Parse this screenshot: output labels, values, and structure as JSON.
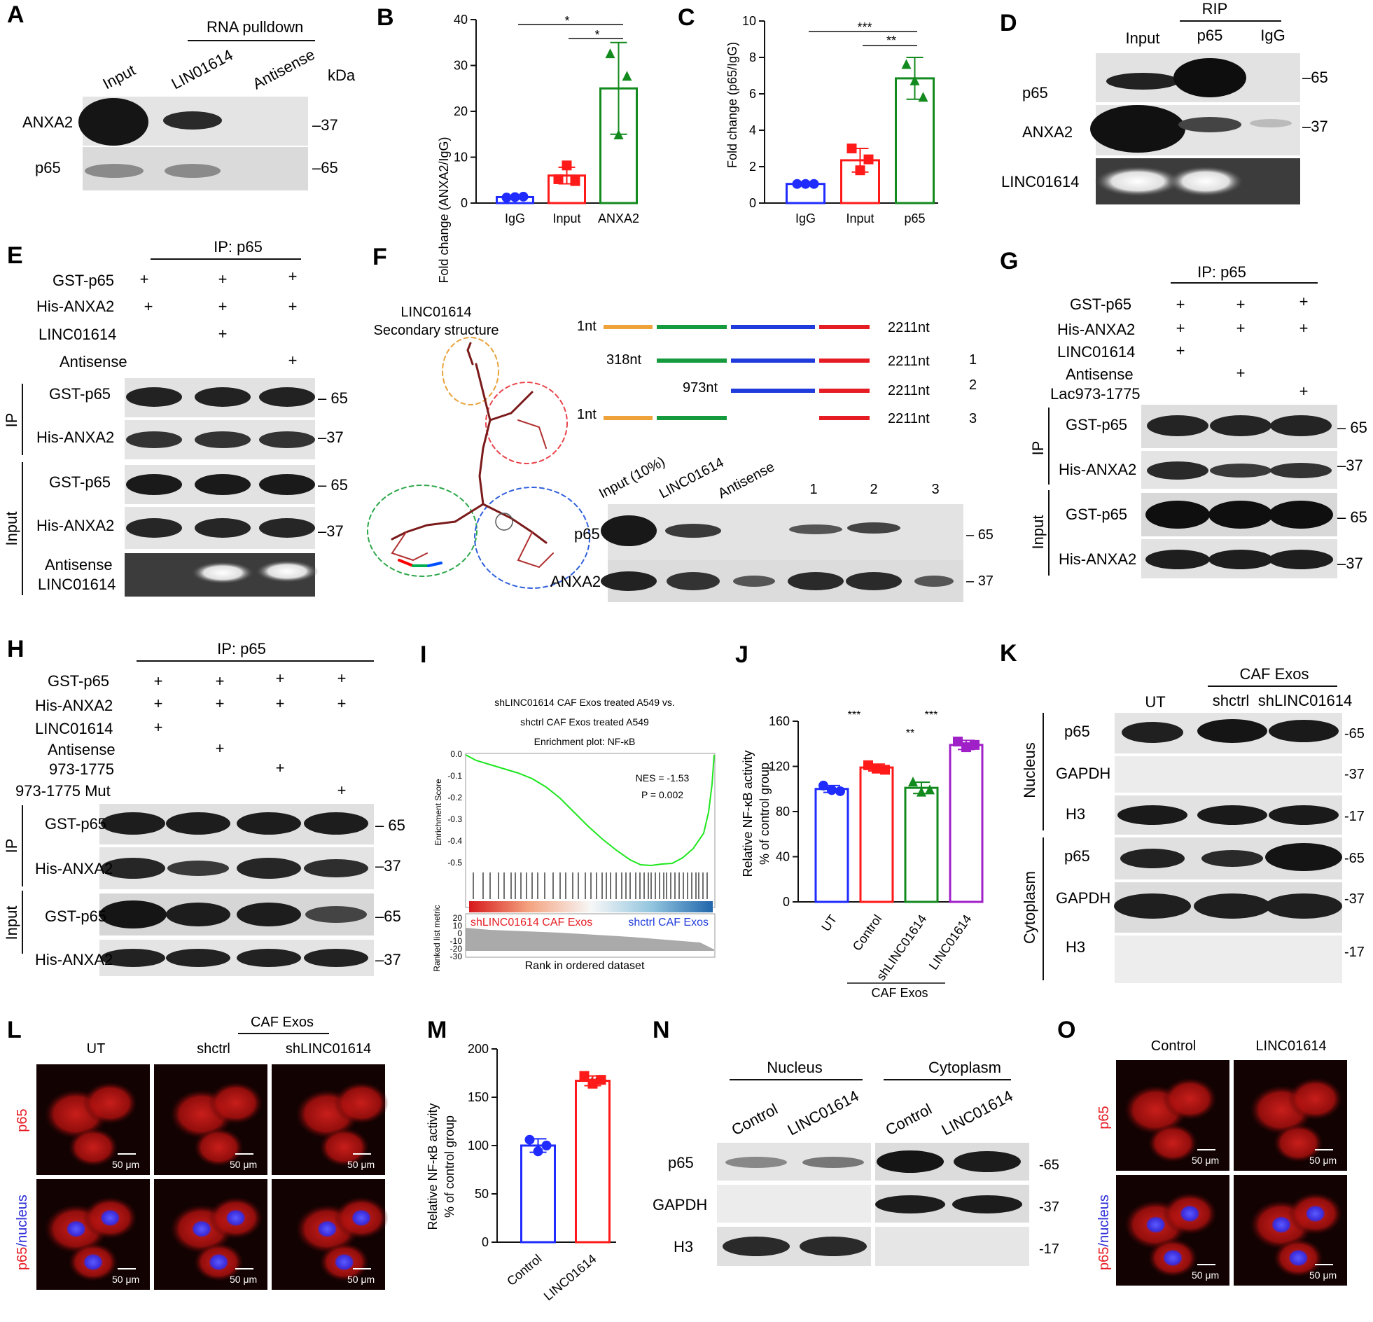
{
  "panels": {
    "A": {
      "letter": "A",
      "header": "RNA pulldown",
      "unit": "kDa",
      "lanes": [
        "Input",
        "LIN01614",
        "Antisense"
      ],
      "rows": [
        "ANXA2",
        "p65"
      ],
      "markers": [
        "37",
        "65"
      ]
    },
    "B": {
      "letter": "B",
      "ylabel": "Fold change (ANXA2/IgG)",
      "sig": [
        "*",
        "*"
      ]
    },
    "C": {
      "letter": "C",
      "ylabel": "Fold change (p65/IgG)",
      "sig": [
        "***",
        "**"
      ]
    },
    "D": {
      "letter": "D",
      "header": "RIP",
      "lanes": [
        "Input",
        "p65",
        "IgG"
      ],
      "rows": [
        "p65",
        "ANXA2",
        "LINC01614"
      ],
      "markers": [
        "65",
        "37"
      ]
    },
    "E": {
      "letter": "E",
      "header": "IP: p65",
      "conds": [
        "GST-p65",
        "His-ANXA2",
        "LINC01614",
        "Antisense"
      ],
      "plus": [
        "+",
        "+",
        "+",
        "+",
        "+",
        "+",
        "+",
        "+"
      ],
      "group_ip": "IP",
      "group_input": "Input",
      "rows": [
        "GST-p65",
        "His-ANXA2",
        "GST-p65",
        "His-ANXA2",
        "Antisense",
        "LINC01614"
      ],
      "markers": [
        "65",
        "37",
        "65",
        "37"
      ]
    },
    "F": {
      "letter": "F",
      "structure_title": "LINC01614",
      "structure_subtitle": "Secondary structure",
      "constructs": [
        {
          "start": "1nt",
          "end": "2211nt",
          "num": ""
        },
        {
          "start": "318nt",
          "end": "2211nt",
          "num": "1"
        },
        {
          "start": "973nt",
          "end": "2211nt",
          "num": "2"
        },
        {
          "start": "1nt",
          "end": "2211nt",
          "num": "3"
        }
      ],
      "lanes": [
        "Input (10%)",
        "LINC01614",
        "Antisense",
        "1",
        "2",
        "3"
      ],
      "rows": [
        "p65",
        "ANXA2"
      ],
      "markers": [
        "65",
        "37"
      ]
    },
    "G": {
      "letter": "G",
      "header": "IP: p65",
      "conds": [
        "GST-p65",
        "His-ANXA2",
        "LINC01614",
        "Antisense",
        "Lac973-1775"
      ],
      "plus": "+",
      "group_ip": "IP",
      "group_input": "Input",
      "rows": [
        "GST-p65",
        "His-ANXA2",
        "GST-p65",
        "His-ANXA2"
      ],
      "markers": [
        "65",
        "37",
        "65",
        "37"
      ]
    },
    "H": {
      "letter": "H",
      "header": "IP: p65",
      "conds": [
        "GST-p65",
        "His-ANXA2",
        "LINC01614",
        "Antisense",
        "973-1775",
        "973-1775 Mut"
      ],
      "plus": "+",
      "group_ip": "IP",
      "group_input": "Input",
      "rows": [
        "GST-p65",
        "His-ANXA2",
        "GST-p65",
        "His-ANXA2"
      ],
      "markers": [
        "65",
        "37",
        "65",
        "37"
      ]
    },
    "I": {
      "letter": "I",
      "title1": "shLINC01614 CAF Exos treated A549 vs.",
      "title2": "shctrl CAF Exos treated A549",
      "title3": "Enrichment plot: NF-κB",
      "nes": "NES = -1.53",
      "p": "P = 0.002",
      "ylabel": "Enrichment Score",
      "ylabel2": "Ranked list metric",
      "xlabel": "Rank in ordered dataset",
      "left_group": "shLINC01614 CAF Exos",
      "right_group": "shctrl CAF Exos",
      "es_ticks": [
        "0.0",
        "-0.1",
        "-0.2",
        "-0.3",
        "-0.4",
        "-0.5"
      ],
      "metric_ticks": [
        "20",
        "10",
        "0",
        "-10",
        "-20",
        "-30"
      ]
    },
    "J": {
      "letter": "J",
      "ylabel1": "Relative NF-κB activity",
      "ylabel2": "% of control group",
      "group": "CAF Exos",
      "sig": [
        "***",
        "**",
        "***"
      ]
    },
    "K": {
      "letter": "K",
      "header": "CAF Exos",
      "lanes": [
        "UT",
        "shctrl",
        "shLINC01614"
      ],
      "group_nucleus": "Nucleus",
      "group_cytoplasm": "Cytoplasm",
      "rows": [
        "p65",
        "GAPDH",
        "H3",
        "p65",
        "GAPDH",
        "H3"
      ],
      "markers": [
        "-65",
        "-37",
        "-17",
        "-65",
        "-37",
        "-17"
      ]
    },
    "L": {
      "letter": "L",
      "header": "CAF Exos",
      "cols": [
        "UT",
        "shctrl",
        "shLINC01614"
      ],
      "row1": "p65",
      "row2a": "p65",
      "row2b": "/nucleus",
      "scale": "50 μm"
    },
    "M": {
      "letter": "M",
      "ylabel1": "Relative NF-κB activity",
      "ylabel2": "% of control group",
      "sig": "***"
    },
    "N": {
      "letter": "N",
      "group_nucleus": "Nucleus",
      "group_cytoplasm": "Cytoplasm",
      "lanes": [
        "Control",
        "LINC01614",
        "Control",
        "LINC01614"
      ],
      "rows": [
        "p65",
        "GAPDH",
        "H3"
      ],
      "markers": [
        "-65",
        "-37",
        "-17"
      ]
    },
    "O": {
      "letter": "O",
      "cols": [
        "Control",
        "LINC01614"
      ],
      "row1": "p65",
      "row2a": "p65",
      "row2b": "/nucleus",
      "scale": "50 μm"
    }
  },
  "chart_data": [
    {
      "panel": "B",
      "type": "bar",
      "categories": [
        "IgG",
        "Input",
        "ANXA2"
      ],
      "values": [
        1.3,
        6.0,
        25.0
      ],
      "errors": [
        0.4,
        1.8,
        10.0
      ],
      "points": [
        [
          1.2,
          1.3,
          1.4
        ],
        [
          5.2,
          8.2,
          4.8
        ],
        [
          32.5,
          14.8,
          27.6
        ]
      ],
      "colors": [
        "#1f2bff",
        "#ff1a1a",
        "#138a1e"
      ],
      "ylim": [
        0,
        40
      ],
      "yticks": [
        0,
        10,
        20,
        30,
        40
      ],
      "ylabel": "Fold change (ANXA2/IgG)"
    },
    {
      "panel": "C",
      "type": "bar",
      "categories": [
        "IgG",
        "Input",
        "p65"
      ],
      "values": [
        1.05,
        2.35,
        6.85
      ],
      "errors": [
        0.08,
        0.65,
        1.15
      ],
      "points": [
        [
          1.05,
          1.05,
          1.05
        ],
        [
          3.0,
          1.8,
          2.4
        ],
        [
          7.6,
          6.7,
          5.8
        ]
      ],
      "colors": [
        "#1f2bff",
        "#ff1a1a",
        "#138a1e"
      ],
      "ylim": [
        0,
        10
      ],
      "yticks": [
        0,
        2,
        4,
        6,
        8,
        10
      ],
      "ylabel": "Fold change (p65/IgG)"
    },
    {
      "panel": "J",
      "type": "bar",
      "categories": [
        "UT",
        "Control",
        "shLINC01614",
        "LINC01614"
      ],
      "values": [
        100,
        119,
        101,
        139
      ],
      "errors": [
        3,
        3,
        5,
        4
      ],
      "points": [
        [
          103,
          99,
          98
        ],
        [
          121,
          118,
          117
        ],
        [
          106,
          97,
          99
        ],
        [
          142,
          137,
          139
        ]
      ],
      "colors": [
        "#1f2bff",
        "#ff1a1a",
        "#138a1e",
        "#a020c8"
      ],
      "ylim": [
        0,
        160
      ],
      "yticks": [
        0,
        40,
        80,
        120,
        160
      ],
      "ylabel": "Relative NF-κB activity % of control group"
    },
    {
      "panel": "M",
      "type": "bar",
      "categories": [
        "Control",
        "LINC01614"
      ],
      "values": [
        100,
        167
      ],
      "errors": [
        7,
        5
      ],
      "points": [
        [
          106,
          94,
          100
        ],
        [
          172,
          164,
          168
        ]
      ],
      "colors": [
        "#1f2bff",
        "#ff1a1a"
      ],
      "ylim": [
        0,
        200
      ],
      "yticks": [
        0,
        50,
        100,
        150,
        200
      ],
      "ylabel": "Relative NF-κB activity % of control group"
    }
  ]
}
